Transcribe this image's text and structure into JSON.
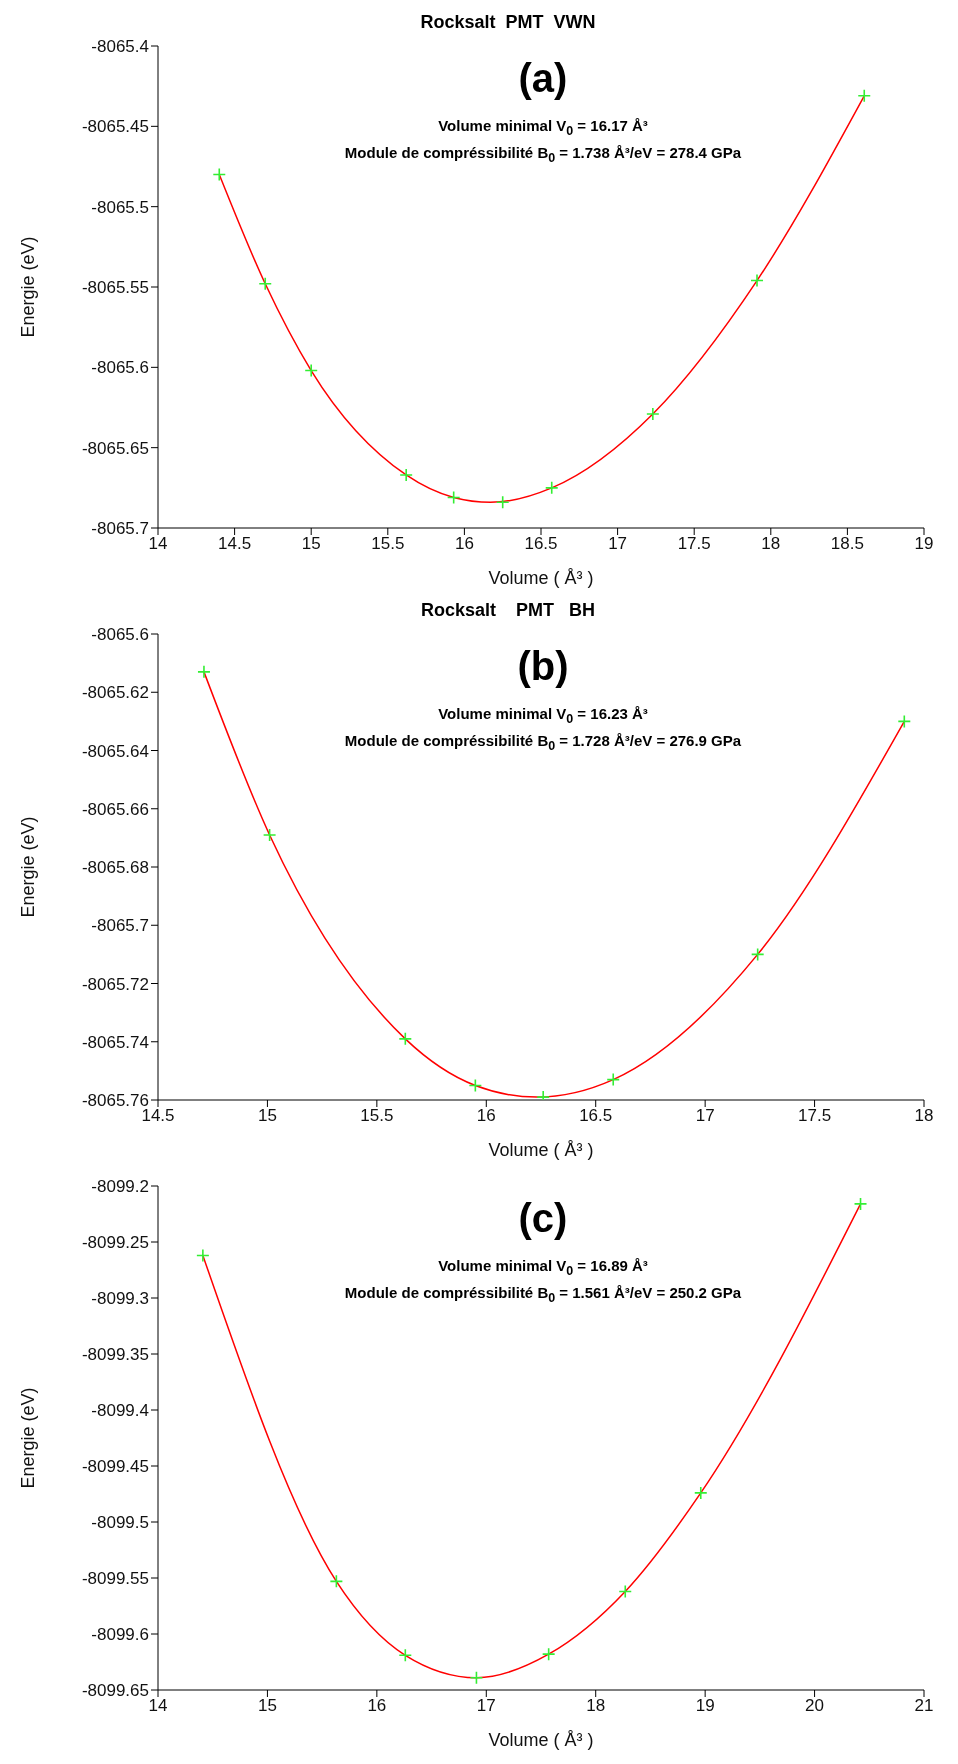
{
  "chart_data": [
    {
      "type": "scatter",
      "title": "Rocksalt  PMT  VWN",
      "xlabel": "Volume ( Å³ )",
      "ylabel": "Energie (eV)",
      "annotations": [
        "(a)",
        "Volume minimal V$_{0}$ = 16.17 Å³",
        "Module de compréssibilité B$_{0}$ = 1.738 Å³/eV = 278.4 GPa"
      ],
      "xlim": [
        14,
        19
      ],
      "xticks": [
        14,
        14.5,
        15,
        15.5,
        16,
        16.5,
        17,
        17.5,
        18,
        18.5,
        19
      ],
      "ylim": [
        -8065.7,
        -8065.4
      ],
      "yticks": [
        -8065.7,
        -8065.65,
        -8065.6,
        -8065.55,
        -8065.5,
        -8065.45,
        -8065.4
      ],
      "grid": false,
      "series": [
        {
          "color": "#33ee33",
          "marker": "cross",
          "x": [
            14.4,
            14.7,
            15.0,
            15.62,
            15.93,
            16.25,
            16.57,
            17.23,
            17.91,
            18.61
          ],
          "values": [
            -8065.48,
            -8065.548,
            -8065.602,
            -8065.667,
            -8065.681,
            -8065.684,
            -8065.675,
            -8065.629,
            -8065.546,
            -8065.431
          ]
        },
        {
          "type": "line",
          "color": "#ff0000",
          "marker": "none",
          "x": [
            14.4,
            14.7,
            15.0,
            15.62,
            15.93,
            16.17,
            16.57,
            17.23,
            17.91,
            18.61
          ],
          "values": [
            -8065.48,
            -8065.548,
            -8065.602,
            -8065.667,
            -8065.681,
            -8065.684,
            -8065.675,
            -8065.629,
            -8065.546,
            -8065.431
          ]
        }
      ]
    },
    {
      "type": "scatter",
      "title": "Rocksalt    PMT   BH",
      "xlabel": "Volume ( Å³ )",
      "ylabel": "Energie (eV)",
      "annotations": [
        "(b)",
        "Volume minimal V$_{0}$ = 16.23 Å³",
        "Module de compréssibilité B$_{0}$ = 1.728 Å³/eV = 276.9 GPa"
      ],
      "xlim": [
        14.5,
        18
      ],
      "xticks": [
        14.5,
        15,
        15.5,
        16,
        16.5,
        17,
        17.5,
        18
      ],
      "ylim": [
        -8065.76,
        -8065.6
      ],
      "yticks": [
        -8065.76,
        -8065.74,
        -8065.72,
        -8065.7,
        -8065.68,
        -8065.66,
        -8065.64,
        -8065.62,
        -8065.6
      ],
      "grid": false,
      "series": [
        {
          "color": "#33ee33",
          "marker": "cross",
          "x": [
            14.71,
            15.01,
            15.63,
            15.95,
            16.26,
            16.58,
            17.24,
            17.91
          ],
          "values": [
            -8065.613,
            -8065.669,
            -8065.739,
            -8065.755,
            -8065.759,
            -8065.753,
            -8065.71,
            -8065.63
          ]
        },
        {
          "type": "line",
          "color": "#ff0000",
          "marker": "none",
          "x": [
            14.71,
            15.01,
            15.63,
            15.95,
            16.23,
            16.58,
            17.24,
            17.91
          ],
          "values": [
            -8065.613,
            -8065.669,
            -8065.739,
            -8065.755,
            -8065.759,
            -8065.753,
            -8065.71,
            -8065.63
          ]
        }
      ]
    },
    {
      "type": "scatter",
      "xlabel": "Volume ( Å³ )",
      "ylabel": "Energie (eV)",
      "annotations": [
        "(c)",
        "Volume minimal V$_{0}$ = 16.89 Å³",
        "Module de compréssibilité B$_{0}$ = 1.561 Å³/eV = 250.2 GPa"
      ],
      "xlim": [
        14,
        21
      ],
      "xticks": [
        14,
        15,
        16,
        17,
        18,
        19,
        20,
        21
      ],
      "ylim": [
        -8099.65,
        -8099.2
      ],
      "yticks": [
        -8099.65,
        -8099.6,
        -8099.55,
        -8099.5,
        -8099.45,
        -8099.4,
        -8099.35,
        -8099.3,
        -8099.25,
        -8099.2
      ],
      "grid": false,
      "series": [
        {
          "color": "#33ee33",
          "marker": "cross",
          "x": [
            14.41,
            15.63,
            16.26,
            16.91,
            17.57,
            18.27,
            18.96,
            20.42
          ],
          "values": [
            -8099.262,
            -8099.553,
            -8099.619,
            -8099.639,
            -8099.618,
            -8099.562,
            -8099.474,
            -8099.216
          ]
        },
        {
          "type": "line",
          "color": "#ff0000",
          "marker": "none",
          "x": [
            14.41,
            15.63,
            16.26,
            16.91,
            17.57,
            18.27,
            18.96,
            20.42
          ],
          "values": [
            -8099.262,
            -8099.553,
            -8099.619,
            -8099.639,
            -8099.618,
            -8099.562,
            -8099.474,
            -8099.216
          ]
        }
      ]
    }
  ]
}
